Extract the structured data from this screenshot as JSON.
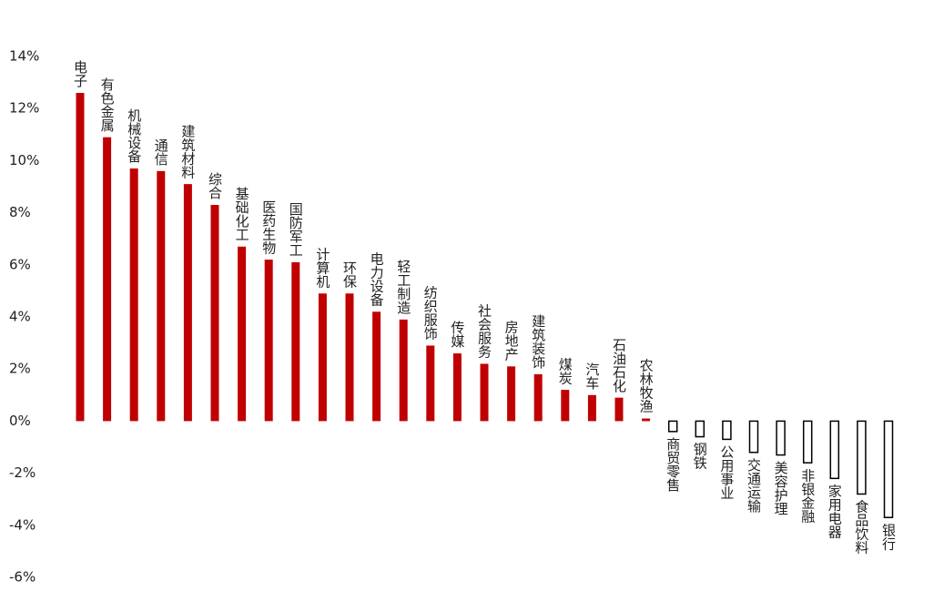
{
  "chart_data": {
    "type": "bar",
    "categories": [
      "电子",
      "有色金属",
      "机械设备",
      "通信",
      "建筑材料",
      "综合",
      "基础化工",
      "医药生物",
      "国防军工",
      "计算机",
      "环保",
      "电力设备",
      "轻工制造",
      "纺织服饰",
      "传媒",
      "社会服务",
      "房地产",
      "建筑装饰",
      "煤炭",
      "汽车",
      "石油石化",
      "农林牧渔",
      "商贸零售",
      "钢铁",
      "公用事业",
      "交通运输",
      "美容护理",
      "非银金融",
      "家用电器",
      "食品饮料",
      "银行"
    ],
    "values": [
      12.6,
      10.9,
      9.7,
      9.6,
      9.1,
      8.3,
      6.7,
      6.2,
      6.1,
      4.9,
      4.9,
      4.2,
      3.9,
      2.9,
      2.6,
      2.2,
      2.1,
      1.8,
      1.2,
      1.0,
      0.9,
      0.1,
      -0.4,
      -0.6,
      -0.7,
      -1.2,
      -1.3,
      -1.6,
      -2.2,
      -2.8,
      -3.7
    ],
    "color": "#c00000",
    "negative_color": "#ffffff",
    "ylim": [
      -6,
      14
    ],
    "yticks": [
      {
        "value": -6,
        "label": "-6%"
      },
      {
        "value": -4,
        "label": "-4%"
      },
      {
        "value": -2,
        "label": "-2%"
      },
      {
        "value": 0,
        "label": "0%"
      },
      {
        "value": 2,
        "label": "2%"
      },
      {
        "value": 4,
        "label": "4%"
      },
      {
        "value": 6,
        "label": "6%"
      },
      {
        "value": 8,
        "label": "8%"
      },
      {
        "value": 10,
        "label": "10%"
      },
      {
        "value": 12,
        "label": "12%"
      },
      {
        "value": 14,
        "label": "14%"
      }
    ],
    "grid": false
  }
}
